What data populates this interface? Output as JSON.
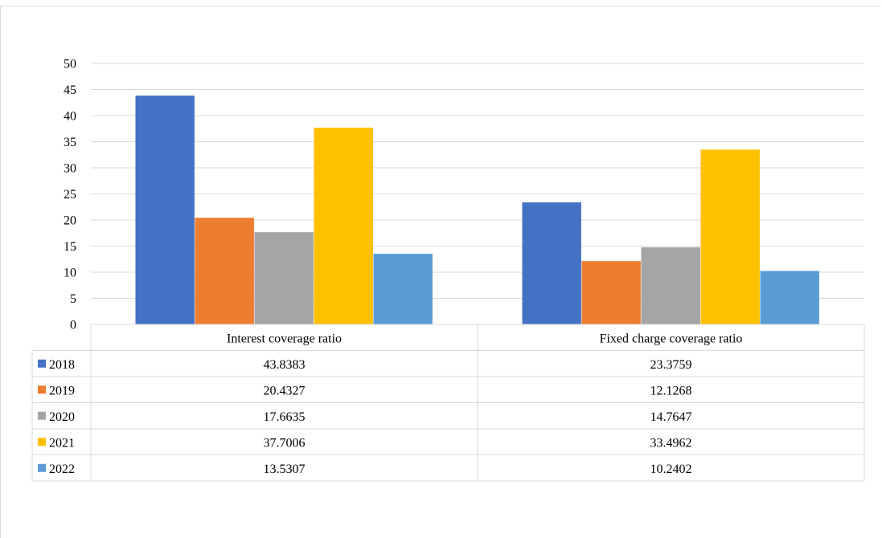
{
  "chart_data": {
    "type": "bar",
    "title": "",
    "xlabel": "",
    "ylabel": "",
    "ylim": [
      0,
      50
    ],
    "yticks": [
      0,
      5,
      10,
      15,
      20,
      25,
      30,
      35,
      40,
      45,
      50
    ],
    "grid": true,
    "legend": "data-table",
    "categories": [
      "Interest coverage ratio",
      "Fixed charge coverage ratio"
    ],
    "series": [
      {
        "name": "2018",
        "color": "#4472C4",
        "values": [
          43.8383,
          23.3759
        ],
        "labels": [
          "43.8383",
          "23.3759"
        ]
      },
      {
        "name": "2019",
        "color": "#ED7D31",
        "values": [
          20.4327,
          12.1268
        ],
        "labels": [
          "20.4327",
          "12.1268"
        ]
      },
      {
        "name": "2020",
        "color": "#A5A5A5",
        "values": [
          17.6635,
          14.7647
        ],
        "labels": [
          "17.6635",
          "14.7647"
        ]
      },
      {
        "name": "2021",
        "color": "#FFC000",
        "values": [
          37.7006,
          33.4962
        ],
        "labels": [
          "37.7006",
          "33.4962"
        ]
      },
      {
        "name": "2022",
        "color": "#5B9BD5",
        "values": [
          13.5307,
          10.2402
        ],
        "labels": [
          "13.5307",
          "10.2402"
        ]
      }
    ]
  }
}
